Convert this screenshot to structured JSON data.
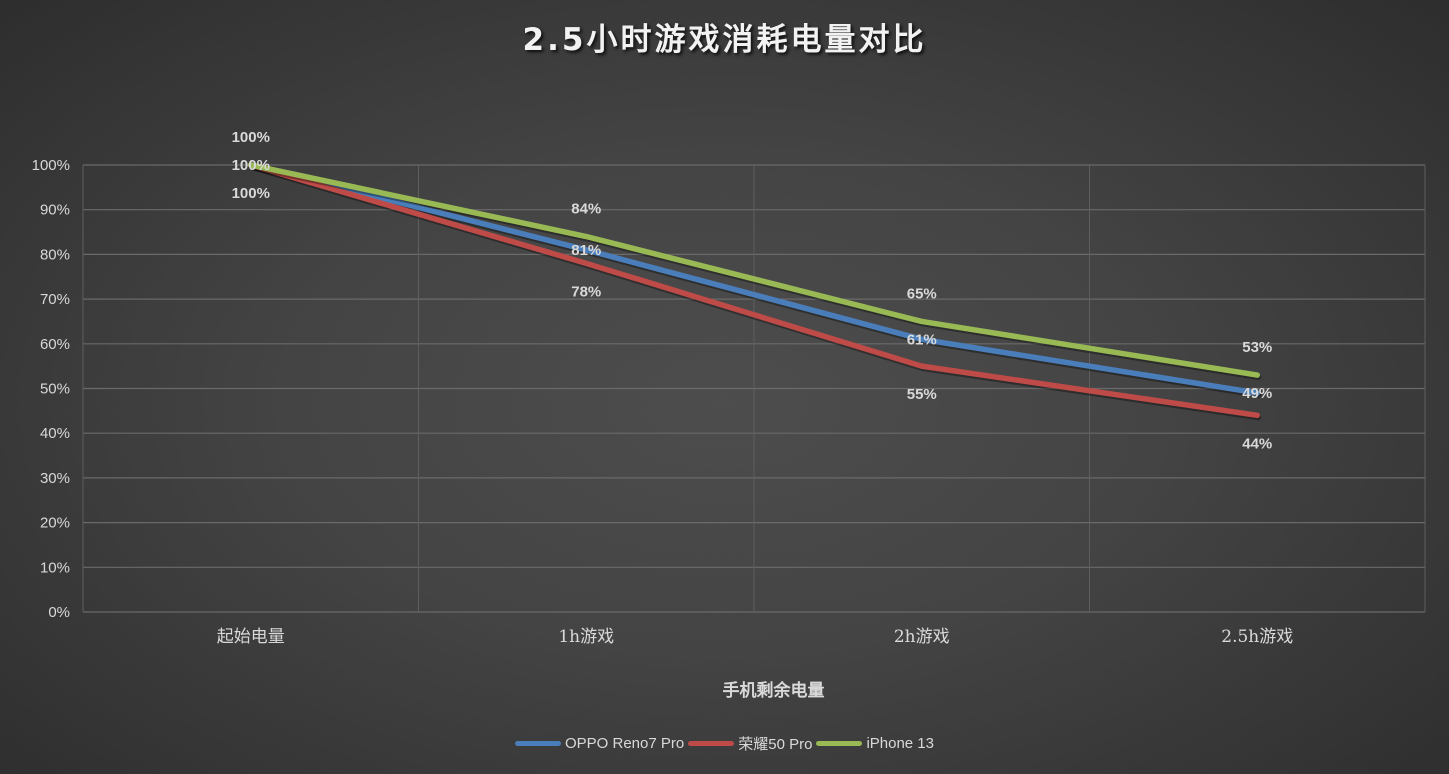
{
  "chart_data": {
    "type": "line",
    "title": "2.5小时游戏消耗电量对比",
    "xlabel": "手机剩余电量",
    "ylabel": "",
    "categories": [
      "起始电量",
      "1h游戏",
      "2h游戏",
      "2.5h游戏"
    ],
    "ylim": [
      0,
      100
    ],
    "yticks": [
      "0%",
      "10%",
      "20%",
      "30%",
      "40%",
      "50%",
      "60%",
      "70%",
      "80%",
      "90%",
      "100%"
    ],
    "grid": true,
    "legend_position": "bottom",
    "series": [
      {
        "name": "OPPO Reno7 Pro",
        "color": "#4a7ebb",
        "values": [
          100,
          81,
          61,
          49
        ],
        "labels": [
          "100%",
          "81%",
          "61%",
          "49%"
        ]
      },
      {
        "name": "荣耀50 Pro",
        "color": "#be4b48",
        "values": [
          100,
          78,
          55,
          44
        ],
        "labels": [
          "100%",
          "78%",
          "55%",
          "44%"
        ]
      },
      {
        "name": "iPhone 13",
        "color": "#98b954",
        "values": [
          100,
          84,
          65,
          53
        ],
        "labels": [
          "100%",
          "84%",
          "65%",
          "53%"
        ]
      }
    ]
  },
  "legend": {
    "items": [
      {
        "label": "OPPO Reno7 Pro",
        "color": "#4a7ebb"
      },
      {
        "label": "荣耀50 Pro",
        "color": "#be4b48"
      },
      {
        "label": "iPhone 13",
        "color": "#98b954"
      }
    ]
  }
}
